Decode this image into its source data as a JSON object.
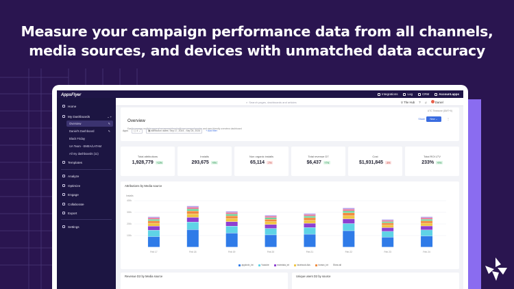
{
  "headline": {
    "line1": "Measure your campaign performance data from all channels,",
    "line2": "media sources, and devices with unmatched data accuracy"
  },
  "colors": {
    "background": "#2a1550",
    "sidebar": "#1c1542",
    "accent": "#8a6cf0",
    "primary": "#3a6ce0"
  },
  "app": {
    "logo": "AppsFlyer",
    "topbar": {
      "integrations": "Integrations",
      "log": "Log",
      "crm": "CRM",
      "account": "Account.apps"
    },
    "search_placeholder": "Search pages, dashboards and articles",
    "hub": "The Hub",
    "user": "Daniel",
    "sidebar": {
      "home": "Home",
      "my_dashboards": "My Dashboards",
      "sub_items": [
        "Overview",
        "Daniel's Dashboard",
        "Black Friday",
        "UA Team - EMEA/LATAM",
        "All my dashboards (11)"
      ],
      "templates": "Templates",
      "analyze": "Analyze",
      "optimize": "Optimize",
      "engage": "Engage",
      "collaborate": "Collaborate",
      "export": "Export",
      "settings": "Settings"
    },
    "overview": {
      "title": "Overview",
      "description": "Easily manage multiple apps at an account level with our comprehensive and user-friendly overview dashboard",
      "meta": "UTC Timezone (GMT+0)",
      "share": "Share",
      "new_button": "New",
      "filters": {
        "apps_label": "Apps",
        "apps_value": "4",
        "date_label": "Attribution dates: Sep 17, 2024 - Sep 24, 2024",
        "add_filter": "Add filter"
      }
    },
    "kpis": [
      {
        "label": "Total attributions",
        "value": "1,928,779",
        "change": "+13%",
        "trend": "up"
      },
      {
        "label": "Installs",
        "value": "293,675",
        "change": "+9%",
        "trend": "up"
      },
      {
        "label": "Non organic installs",
        "value": "65,114",
        "change": "-7%",
        "trend": "down"
      },
      {
        "label": "Total revenue D7",
        "value": "$6,437",
        "change": "+7%",
        "trend": "up"
      },
      {
        "label": "Cost",
        "value": "$1,931,845",
        "change": "-6%",
        "trend": "down"
      },
      {
        "label": "Total ROI LTV",
        "value": "233%",
        "change": "+9%",
        "trend": "up"
      }
    ],
    "bottom_cards": [
      "Revenue D2 by Media source",
      "Unique users D2 by source"
    ]
  },
  "chart_data": {
    "type": "bar",
    "title": "Attributions by Media source",
    "ylabel": "Installs",
    "yticks": [
      "100k",
      "200k",
      "300k",
      "400k"
    ],
    "ylim": [
      0,
      400
    ],
    "categories": [
      "Feb 17",
      "Feb 18",
      "Feb 19",
      "Feb 20",
      "Feb 21",
      "Feb 22",
      "Feb 23",
      "Feb 24"
    ],
    "stacked": true,
    "series": [
      {
        "name": "applovin_int",
        "color": "#2f7be8",
        "values": [
          90,
          150,
          120,
          105,
          110,
          140,
          85,
          95
        ]
      },
      {
        "name": "Youtube",
        "color": "#5fd3e6",
        "values": [
          55,
          65,
          60,
          55,
          58,
          62,
          50,
          52
        ]
      },
      {
        "name": "mobvista_int",
        "color": "#8e3fd1",
        "values": [
          35,
          40,
          38,
          34,
          36,
          40,
          32,
          34
        ]
      },
      {
        "name": "facebook Ads",
        "color": "#f0c544",
        "values": [
          25,
          30,
          28,
          25,
          26,
          28,
          22,
          24
        ]
      },
      {
        "name": "ironsrc_int",
        "color": "#f08a3c",
        "values": [
          20,
          25,
          22,
          20,
          22,
          24,
          18,
          20
        ]
      },
      {
        "name": "",
        "color": "#6bd39a",
        "values": [
          14,
          18,
          16,
          14,
          15,
          17,
          12,
          14
        ]
      },
      {
        "name": "",
        "color": "#e86a8e",
        "values": [
          12,
          14,
          13,
          12,
          12,
          14,
          10,
          12
        ]
      },
      {
        "name": "",
        "color": "#b39ae8",
        "values": [
          10,
          12,
          11,
          10,
          10,
          12,
          9,
          10
        ]
      }
    ],
    "legend_extra": "Show all",
    "grid": true,
    "legend_position": "bottom"
  }
}
